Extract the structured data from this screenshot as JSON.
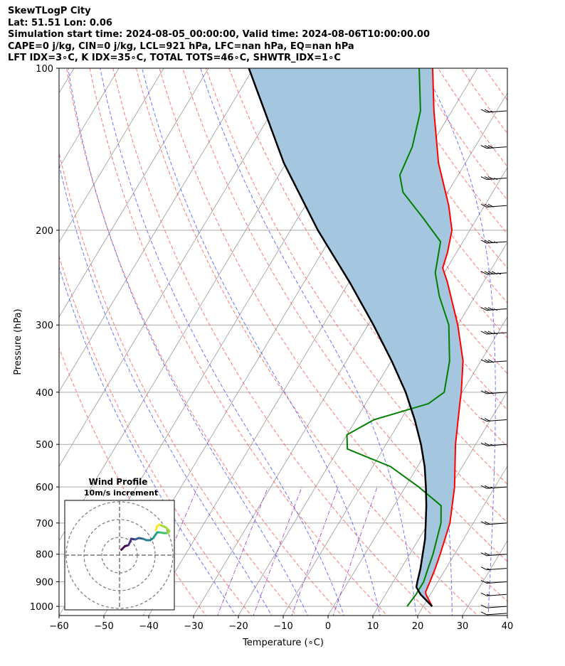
{
  "header": {
    "line1": "SkewTLogP City",
    "line2": "Lat: 51.51   Lon: 0.06",
    "line3": "Simulation start time: 2024-08-05_00:00:00, Valid time: 2024-08-06T10:00:00.00",
    "line4": "CAPE=0 j/kg, CIN=0 j/kg, LCL=921 hPa, LFC=nan hPa, EQ=nan hPa",
    "line5": "LFT IDX=3∘C, K IDX=35∘C, TOTAL TOTS=46∘C, SHWTR_IDX=1∘C"
  },
  "colors": {
    "temperature": "#ff0000",
    "dewpoint": "#008000",
    "parcel": "#000000",
    "cape_fill": "#a4c6df",
    "dry_adiabat": "#ff5555",
    "moist_adiabat": "#4455ff",
    "mixing_ratio": "#9933cc",
    "isotherm": "#999999"
  },
  "chart_data": {
    "type": "line",
    "title": "SkewTLogP City",
    "xlabel": "Temperature (∘C)",
    "ylabel": "Pressure (hPa)",
    "xlim": [
      -60,
      40
    ],
    "ylim": [
      1040,
      100
    ],
    "x_ticks": [
      "−60",
      "−50",
      "−40",
      "−30",
      "−20",
      "−10",
      "0",
      "10",
      "20",
      "30",
      "40"
    ],
    "y_ticks": [
      "100",
      "200",
      "300",
      "400",
      "500",
      "600",
      "700",
      "800",
      "900",
      "1000"
    ],
    "series": [
      {
        "name": "Temperature",
        "points": [
          [
            1000,
            22
          ],
          [
            950,
            19
          ],
          [
            940,
            18.6
          ],
          [
            900,
            18.2
          ],
          [
            850,
            17.6
          ],
          [
            800,
            16.8
          ],
          [
            700,
            14.8
          ],
          [
            600,
            11
          ],
          [
            500,
            5.5
          ],
          [
            420,
            1
          ],
          [
            400,
            -0.2
          ],
          [
            350,
            -4
          ],
          [
            300,
            -10
          ],
          [
            250,
            -18
          ],
          [
            235,
            -21
          ],
          [
            220,
            -22
          ],
          [
            200,
            -24
          ],
          [
            180,
            -28
          ],
          [
            150,
            -36
          ],
          [
            120,
            -44
          ],
          [
            100,
            -50
          ]
        ]
      },
      {
        "name": "Dewpoint",
        "points": [
          [
            1000,
            16.4
          ],
          [
            950,
            16.8
          ],
          [
            900,
            16.8
          ],
          [
            850,
            16
          ],
          [
            800,
            15.2
          ],
          [
            700,
            12.8
          ],
          [
            650,
            10.5
          ],
          [
            600,
            3
          ],
          [
            550,
            -6
          ],
          [
            510,
            -18
          ],
          [
            480,
            -20
          ],
          [
            450,
            -16
          ],
          [
            420,
            -6
          ],
          [
            400,
            -4
          ],
          [
            350,
            -7
          ],
          [
            300,
            -12
          ],
          [
            265,
            -18
          ],
          [
            240,
            -22
          ],
          [
            210,
            -25
          ],
          [
            190,
            -32
          ],
          [
            170,
            -40
          ],
          [
            158,
            -43
          ],
          [
            140,
            -44
          ],
          [
            120,
            -47
          ],
          [
            100,
            -53
          ]
        ]
      },
      {
        "name": "Parcel",
        "points": [
          [
            1000,
            22
          ],
          [
            950,
            17.8
          ],
          [
            921,
            15.9
          ],
          [
            900,
            15.4
          ],
          [
            850,
            14.3
          ],
          [
            800,
            12.9
          ],
          [
            750,
            11.4
          ],
          [
            700,
            9.4
          ],
          [
            650,
            7.2
          ],
          [
            600,
            4.6
          ],
          [
            550,
            1.6
          ],
          [
            500,
            -2.2
          ],
          [
            450,
            -6.9
          ],
          [
            400,
            -12.6
          ],
          [
            350,
            -19.9
          ],
          [
            300,
            -28.8
          ],
          [
            250,
            -39.8
          ],
          [
            200,
            -53.9
          ],
          [
            150,
            -70.5
          ],
          [
            100,
            -91
          ]
        ]
      }
    ],
    "wind_barbs": [
      {
        "p": 1030,
        "speed_kt": 10,
        "dir_deg": 250
      },
      {
        "p": 1000,
        "speed_kt": 10,
        "dir_deg": 250
      },
      {
        "p": 950,
        "speed_kt": 15,
        "dir_deg": 250
      },
      {
        "p": 900,
        "speed_kt": 15,
        "dir_deg": 245
      },
      {
        "p": 850,
        "speed_kt": 15,
        "dir_deg": 245
      },
      {
        "p": 800,
        "speed_kt": 20,
        "dir_deg": 240
      },
      {
        "p": 700,
        "speed_kt": 20,
        "dir_deg": 240
      },
      {
        "p": 600,
        "speed_kt": 25,
        "dir_deg": 245
      },
      {
        "p": 500,
        "speed_kt": 25,
        "dir_deg": 245
      },
      {
        "p": 450,
        "speed_kt": 20,
        "dir_deg": 245
      },
      {
        "p": 400,
        "speed_kt": 25,
        "dir_deg": 240
      },
      {
        "p": 350,
        "speed_kt": 30,
        "dir_deg": 240
      },
      {
        "p": 310,
        "speed_kt": 35,
        "dir_deg": 240
      },
      {
        "p": 280,
        "speed_kt": 35,
        "dir_deg": 240
      },
      {
        "p": 240,
        "speed_kt": 45,
        "dir_deg": 240
      },
      {
        "p": 210,
        "speed_kt": 35,
        "dir_deg": 240
      },
      {
        "p": 180,
        "speed_kt": 30,
        "dir_deg": 240
      },
      {
        "p": 160,
        "speed_kt": 35,
        "dir_deg": 240
      },
      {
        "p": 140,
        "speed_kt": 30,
        "dir_deg": 240
      },
      {
        "p": 120,
        "speed_kt": 25,
        "dir_deg": 240
      }
    ],
    "inset": {
      "title": "Wind Profile",
      "subtitle": "10m/s increment",
      "rings": 3,
      "hodograph": [
        [
          0.5,
          1.5
        ],
        [
          1.5,
          2.5
        ],
        [
          2.5,
          2.8
        ],
        [
          3.0,
          3.8
        ],
        [
          3.3,
          4.6
        ],
        [
          4.4,
          4.4
        ],
        [
          5.4,
          4.8
        ],
        [
          6.6,
          4.6
        ],
        [
          7.6,
          4.2
        ],
        [
          8.6,
          4.2
        ],
        [
          9.5,
          4.8
        ],
        [
          10,
          5.6
        ],
        [
          10.6,
          6.4
        ],
        [
          11.4,
          6.4
        ],
        [
          12.4,
          6.2
        ],
        [
          13.6,
          6.2
        ],
        [
          14,
          6.8
        ],
        [
          13,
          7.8
        ],
        [
          11.2,
          8.6
        ],
        [
          10.5,
          8.0
        ],
        [
          10.2,
          7.0
        ]
      ]
    }
  }
}
